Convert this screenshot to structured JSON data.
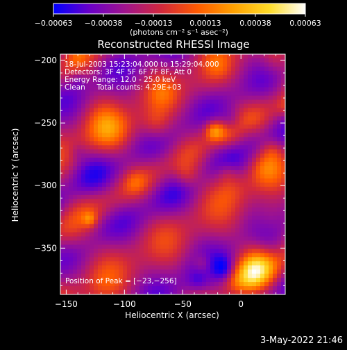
{
  "chart_data": {
    "type": "heatmap",
    "title": "Reconstructed RHESSI Image",
    "xlabel": "Heliocentric X (arcsec)",
    "ylabel": "Heliocentric Y (arcsec)",
    "xlim": [
      -155,
      38
    ],
    "ylim": [
      -387,
      -195
    ],
    "x_ticks": [
      -150,
      -100,
      -50,
      0
    ],
    "y_ticks": [
      -200,
      -250,
      -300,
      -350
    ],
    "x_tick_labels": [
      "−150",
      "−100",
      "−50",
      "0"
    ],
    "y_tick_labels": [
      "−200",
      "−250",
      "−300",
      "−350"
    ],
    "colorbar": {
      "min": -0.00063,
      "max": 0.00063,
      "ticks": [
        -0.00063,
        -0.00038,
        -0.00013,
        0.00013,
        0.00038,
        0.00063
      ],
      "tick_labels": [
        "−0.00063",
        "−0.00038",
        "−0.00013",
        "0.00013",
        "0.00038",
        "0.00063"
      ],
      "unit_label": "(photons cm⁻² s⁻¹ asec⁻²)",
      "colormap": [
        "#0000ff",
        "#6a00c8",
        "#a0148c",
        "#d2283c",
        "#ff5a00",
        "#ffa000",
        "#ffdc28",
        "#ffffff"
      ]
    },
    "info_lines": [
      "18-Jul-2003 15:23:04.000 to 15:29:04.000",
      "Detectors: 3F 4F 5F 6F 7F 8F, Att 0",
      "Energy Range: 12.0 - 25.0 keV",
      "Clean     Total counts: 4.29E+03"
    ],
    "peak_label": "Position of Peak = [−23,−256]",
    "peak_position": [
      -23,
      -256
    ]
  },
  "footer_timestamp": "3-May-2022 21:46"
}
